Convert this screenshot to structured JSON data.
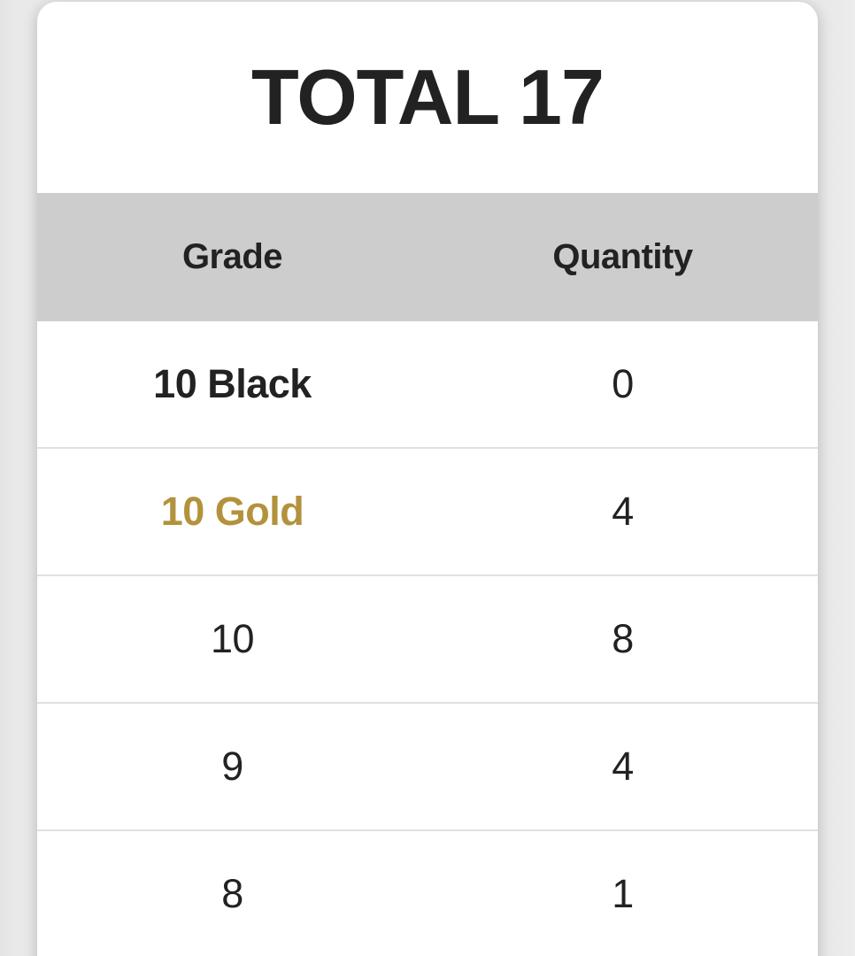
{
  "title": "TOTAL 17",
  "table": {
    "columns": [
      "Grade",
      "Quantity"
    ],
    "rows": [
      {
        "grade": "10 Black",
        "quantity": "0",
        "style": "bold-black"
      },
      {
        "grade": "10 Gold",
        "quantity": "4",
        "style": "bold-gold"
      },
      {
        "grade": "10",
        "quantity": "8",
        "style": "regular"
      },
      {
        "grade": "9",
        "quantity": "4",
        "style": "regular"
      },
      {
        "grade": "8",
        "quantity": "1",
        "style": "regular"
      }
    ]
  },
  "colors": {
    "page_bg": "#e9e9e9",
    "card_bg": "#ffffff",
    "header_bg": "#cdcdcd",
    "text": "#222222",
    "gold": "#b2923c",
    "divider": "#e1e1e1"
  }
}
